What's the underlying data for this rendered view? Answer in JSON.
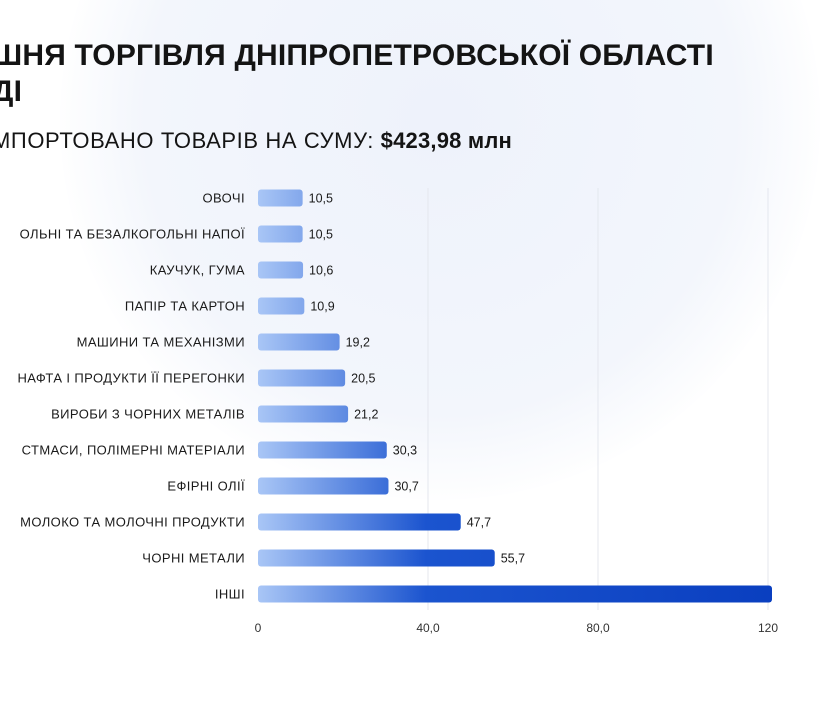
{
  "header": {
    "title_line1": "ШНЯ ТОРГІВЛЯ ДНІПРОПЕТРОВСЬКОЇ ОБЛАСТІ",
    "title_line2": "ДІ",
    "subtitle_prefix": "МПОРТОВАНО ТОВАРІВ НА СУМУ:",
    "subtitle_amount": "$423,98 млн"
  },
  "colors": {
    "bar_light": "#a9c6f6",
    "bar_dark": "#0a3fc0",
    "grid": "#e4e7ee",
    "text": "#141414"
  },
  "chart_data": {
    "type": "bar",
    "orientation": "horizontal",
    "categories": [
      "ОВОЧІ",
      "ОЛЬНІ ТА БЕЗАЛКОГОЛЬНІ НАПОЇ",
      "КАУЧУК, ГУМА",
      "ПАПІР ТА КАРТОН",
      "МАШИНИ ТА МЕХАНІЗМИ",
      "НАФТА І ПРОДУКТИ ЇЇ ПЕРЕГОНКИ",
      "ВИРОБИ З ЧОРНИХ МЕТАЛІВ",
      "СТМАСИ, ПОЛІМЕРНІ МАТЕРІАЛИ",
      "ЕФІРНІ ОЛІЇ",
      "МОЛОКО ТА МОЛОЧНІ ПРОДУКТИ",
      "ЧОРНІ МЕТАЛИ",
      "ІНШІ"
    ],
    "values": [
      10.5,
      10.5,
      10.6,
      10.9,
      19.2,
      20.5,
      21.2,
      30.3,
      30.7,
      47.7,
      55.7,
      null
    ],
    "value_labels": [
      "10,5",
      "10,5",
      "10,6",
      "10,9",
      "19,2",
      "20,5",
      "21,2",
      "30,3",
      "30,7",
      "47,7",
      "55,7",
      ""
    ],
    "x_ticks": [
      0,
      40,
      80,
      120
    ],
    "x_tick_labels": [
      "0",
      "40,0",
      "80,0",
      "120"
    ],
    "xlim": [
      0,
      120
    ],
    "grid": true,
    "xlabel": "",
    "ylabel": ""
  }
}
